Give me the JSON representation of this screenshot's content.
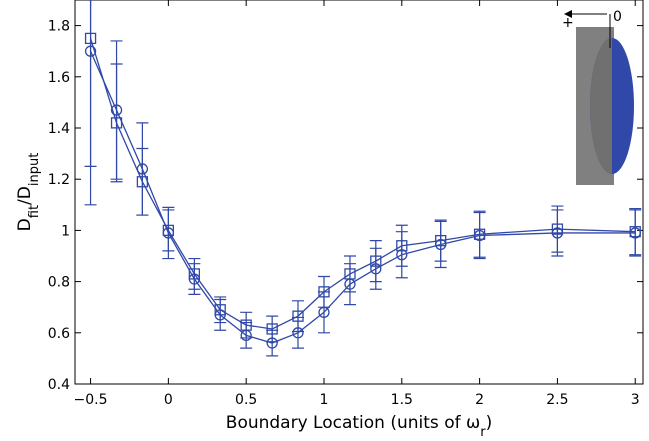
{
  "chart_data": {
    "type": "errorbar-line",
    "ylabel": [
      {
        "text": "D"
      },
      {
        "text": "fit",
        "sub": true
      },
      {
        "text": "/D"
      },
      {
        "text": "input",
        "sub": true
      }
    ],
    "xlabel": [
      {
        "text": "Boundary Location (units of ω"
      },
      {
        "text": "r",
        "sub": true
      },
      {
        "text": ")"
      }
    ],
    "x": [
      -0.5,
      -0.333,
      -0.167,
      0,
      0.167,
      0.333,
      0.5,
      0.667,
      0.833,
      1,
      1.167,
      1.333,
      1.5,
      1.75,
      2,
      2.5,
      3
    ],
    "series": [
      {
        "marker": "circle",
        "color": "#3048a8",
        "values": [
          1.7,
          1.47,
          1.24,
          0.99,
          0.81,
          0.67,
          0.59,
          0.56,
          0.6,
          0.68,
          0.79,
          0.85,
          0.905,
          0.945,
          0.98,
          0.99,
          0.99
        ],
        "errors": [
          0.6,
          0.27,
          0.18,
          0.1,
          0.06,
          0.06,
          0.05,
          0.05,
          0.06,
          0.08,
          0.08,
          0.08,
          0.09,
          0.09,
          0.09,
          0.09,
          0.09
        ]
      },
      {
        "marker": "square",
        "color": "#3048a8",
        "values": [
          1.75,
          1.42,
          1.19,
          1.0,
          0.83,
          0.69,
          0.63,
          0.615,
          0.665,
          0.76,
          0.83,
          0.88,
          0.94,
          0.96,
          0.985,
          1.005,
          0.995
        ],
        "errors": [
          0.5,
          0.23,
          0.13,
          0.08,
          0.06,
          0.05,
          0.05,
          0.05,
          0.06,
          0.06,
          0.07,
          0.08,
          0.08,
          0.08,
          0.09,
          0.09,
          0.09
        ]
      }
    ],
    "xlim": [
      -0.6,
      3.05
    ],
    "ylim": [
      0.4,
      1.9
    ],
    "xticks": [
      {
        "value": -0.5,
        "label": "−0.5"
      },
      0,
      0.5,
      1,
      1.5,
      2,
      2.5,
      3
    ],
    "yticks": [
      0.4,
      0.6,
      0.8,
      1,
      1.2,
      1.4,
      1.6,
      1.8
    ],
    "inset": {
      "plus": "+",
      "zero": "0"
    }
  }
}
